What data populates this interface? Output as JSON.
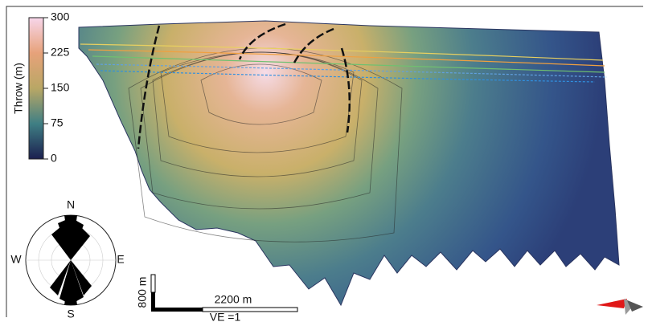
{
  "colorbar": {
    "label": "Throw (m)",
    "range": [
      0,
      300
    ],
    "ticks": [
      0,
      75,
      150,
      225,
      300
    ]
  },
  "rose": {
    "north": "N",
    "east": "E",
    "south": "S",
    "west": "W"
  },
  "scale_bar": {
    "vertical": "800 m",
    "horizontal": "2200 m",
    "exaggeration": "VE =1"
  }
}
